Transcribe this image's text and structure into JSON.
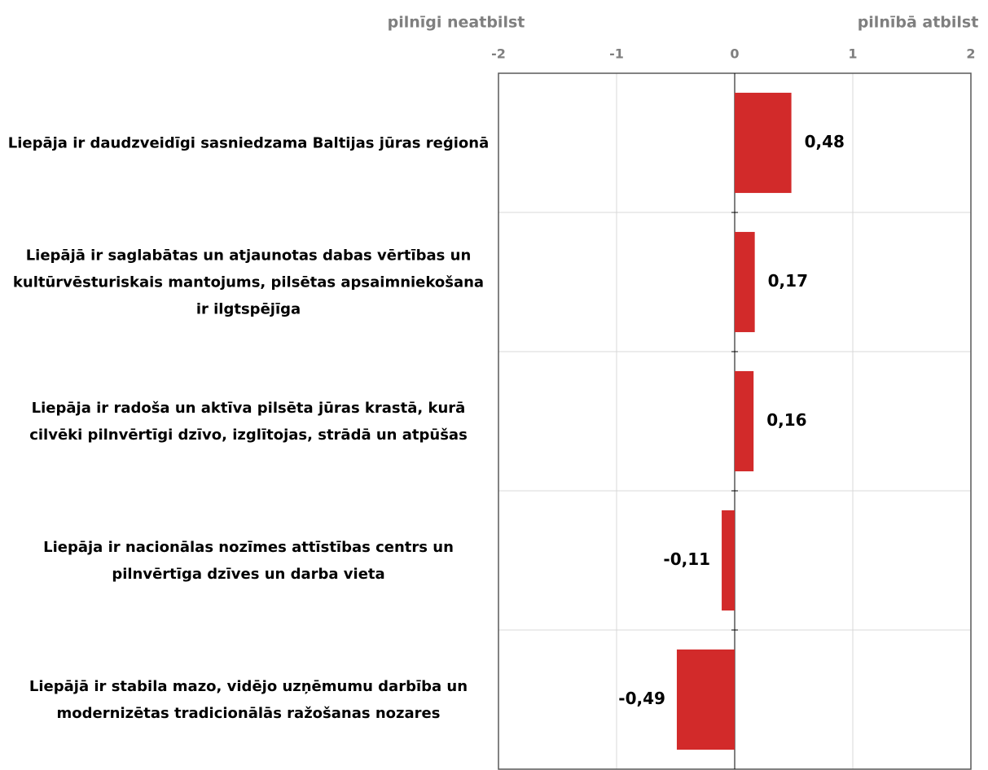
{
  "chart_data": {
    "type": "bar",
    "orientation": "horizontal",
    "annotations": [
      "pilnīgi neatbilst",
      "pilnībā atbilst"
    ],
    "categories": [
      "Liepāja ir daudzveidīgi sasniedzama Baltijas jūras reģionā",
      "Liepājā ir saglabātas un atjaunotas dabas vērtības un kultūrvēsturiskais mantojums, pilsētas apsaimniekošana ir ilgtspējīga",
      "Liepāja ir radoša un aktīva pilsēta jūras krastā, kurā cilvēki pilnvērtīgi dzīvo, izglītojas, strādā un atpūšas",
      "Liepāja ir nacionālas nozīmes attīstības centrs un pilnvērtīga dzīves un darba vieta",
      "Liepājā ir stabila mazo, vidējo uzņēmumu darbība un modernizētas tradicionālās ražošanas nozares"
    ],
    "values": [
      0.48,
      0.17,
      0.16,
      -0.11,
      -0.49
    ],
    "value_labels": [
      "0,48",
      "0,17",
      "0,16",
      "-0,11",
      "-0,49"
    ],
    "color": "#d22a2a",
    "xlim": [
      -2,
      2
    ],
    "xticks": [
      -2,
      -1,
      0,
      1,
      2
    ],
    "grid": true
  }
}
